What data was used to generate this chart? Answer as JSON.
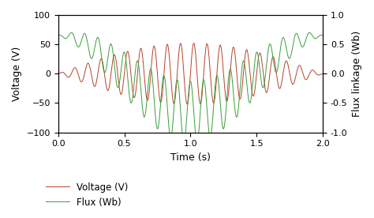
{
  "title": "",
  "xlabel": "Time (s)",
  "ylabel_left": "Voltage (V)",
  "ylabel_right": "Flux linkage (Wb)",
  "xlim": [
    0.0,
    2.0
  ],
  "ylim_left": [
    -100,
    100
  ],
  "ylim_right": [
    -1.0,
    1.0
  ],
  "xticks": [
    0.0,
    0.5,
    1.0,
    1.5,
    2.0
  ],
  "yticks_left": [
    -100,
    -50,
    0,
    50,
    100
  ],
  "yticks_right": [
    -1.0,
    -0.5,
    0.0,
    0.5,
    1.0
  ],
  "voltage_color": "#b5432a",
  "flux_color": "#3a9e3a",
  "background_color": "#ffffff",
  "legend_voltage": "Voltage (V)",
  "legend_flux": "Flux (Wb)",
  "t_start": 0.0,
  "t_end": 2.0,
  "n_points": 8000,
  "high_freq": 10.0,
  "low_freq": 0.5,
  "voltage_amplitude": 52.0,
  "flux_low_amplitude": 0.65,
  "flux_high_amplitude": 0.52,
  "voltage_envelope_power": 1.0
}
